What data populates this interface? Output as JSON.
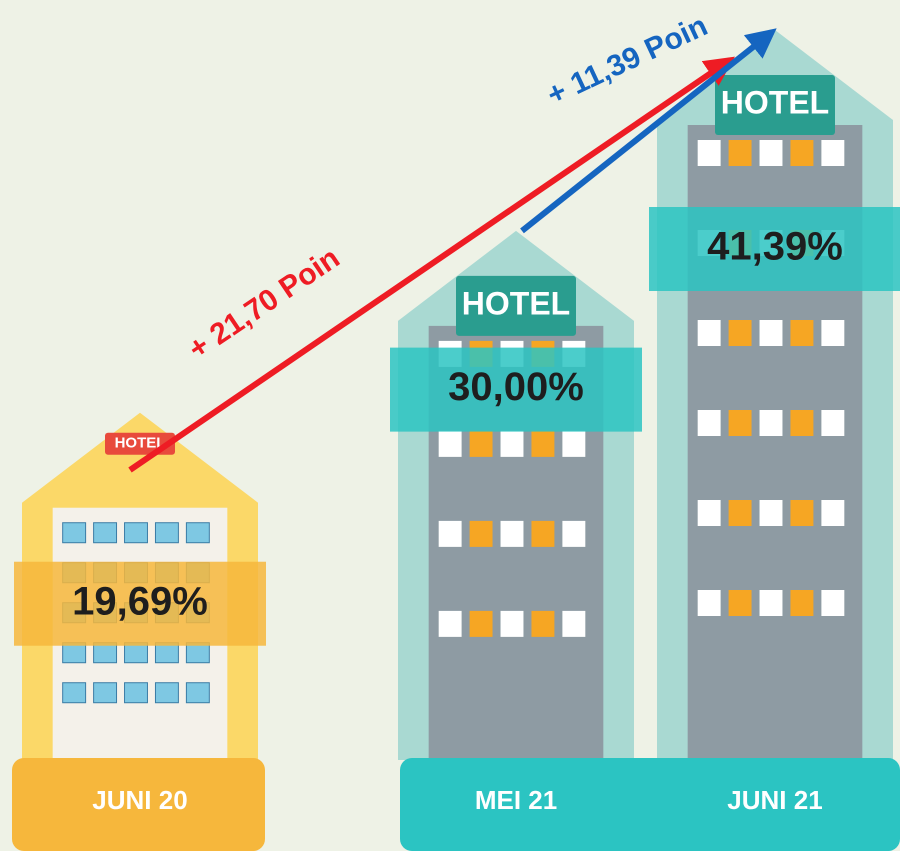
{
  "chart_data": {
    "type": "bar",
    "categories": [
      "JUNI 20",
      "MEI 21",
      "JUNI 21"
    ],
    "values": [
      19.69,
      30.0,
      41.39
    ],
    "value_labels": [
      "19,69%",
      "30,00%",
      "41,39%"
    ],
    "colors": [
      "#f6b73c",
      "#2bc4c2",
      "#2bc4c2"
    ],
    "sign": "HOTEL",
    "annotations": [
      {
        "text": "+ 21,70 Poin",
        "color": "#ee1c24"
      },
      {
        "text": "+ 11,39 Poin",
        "color": "#1565c0"
      }
    ]
  }
}
